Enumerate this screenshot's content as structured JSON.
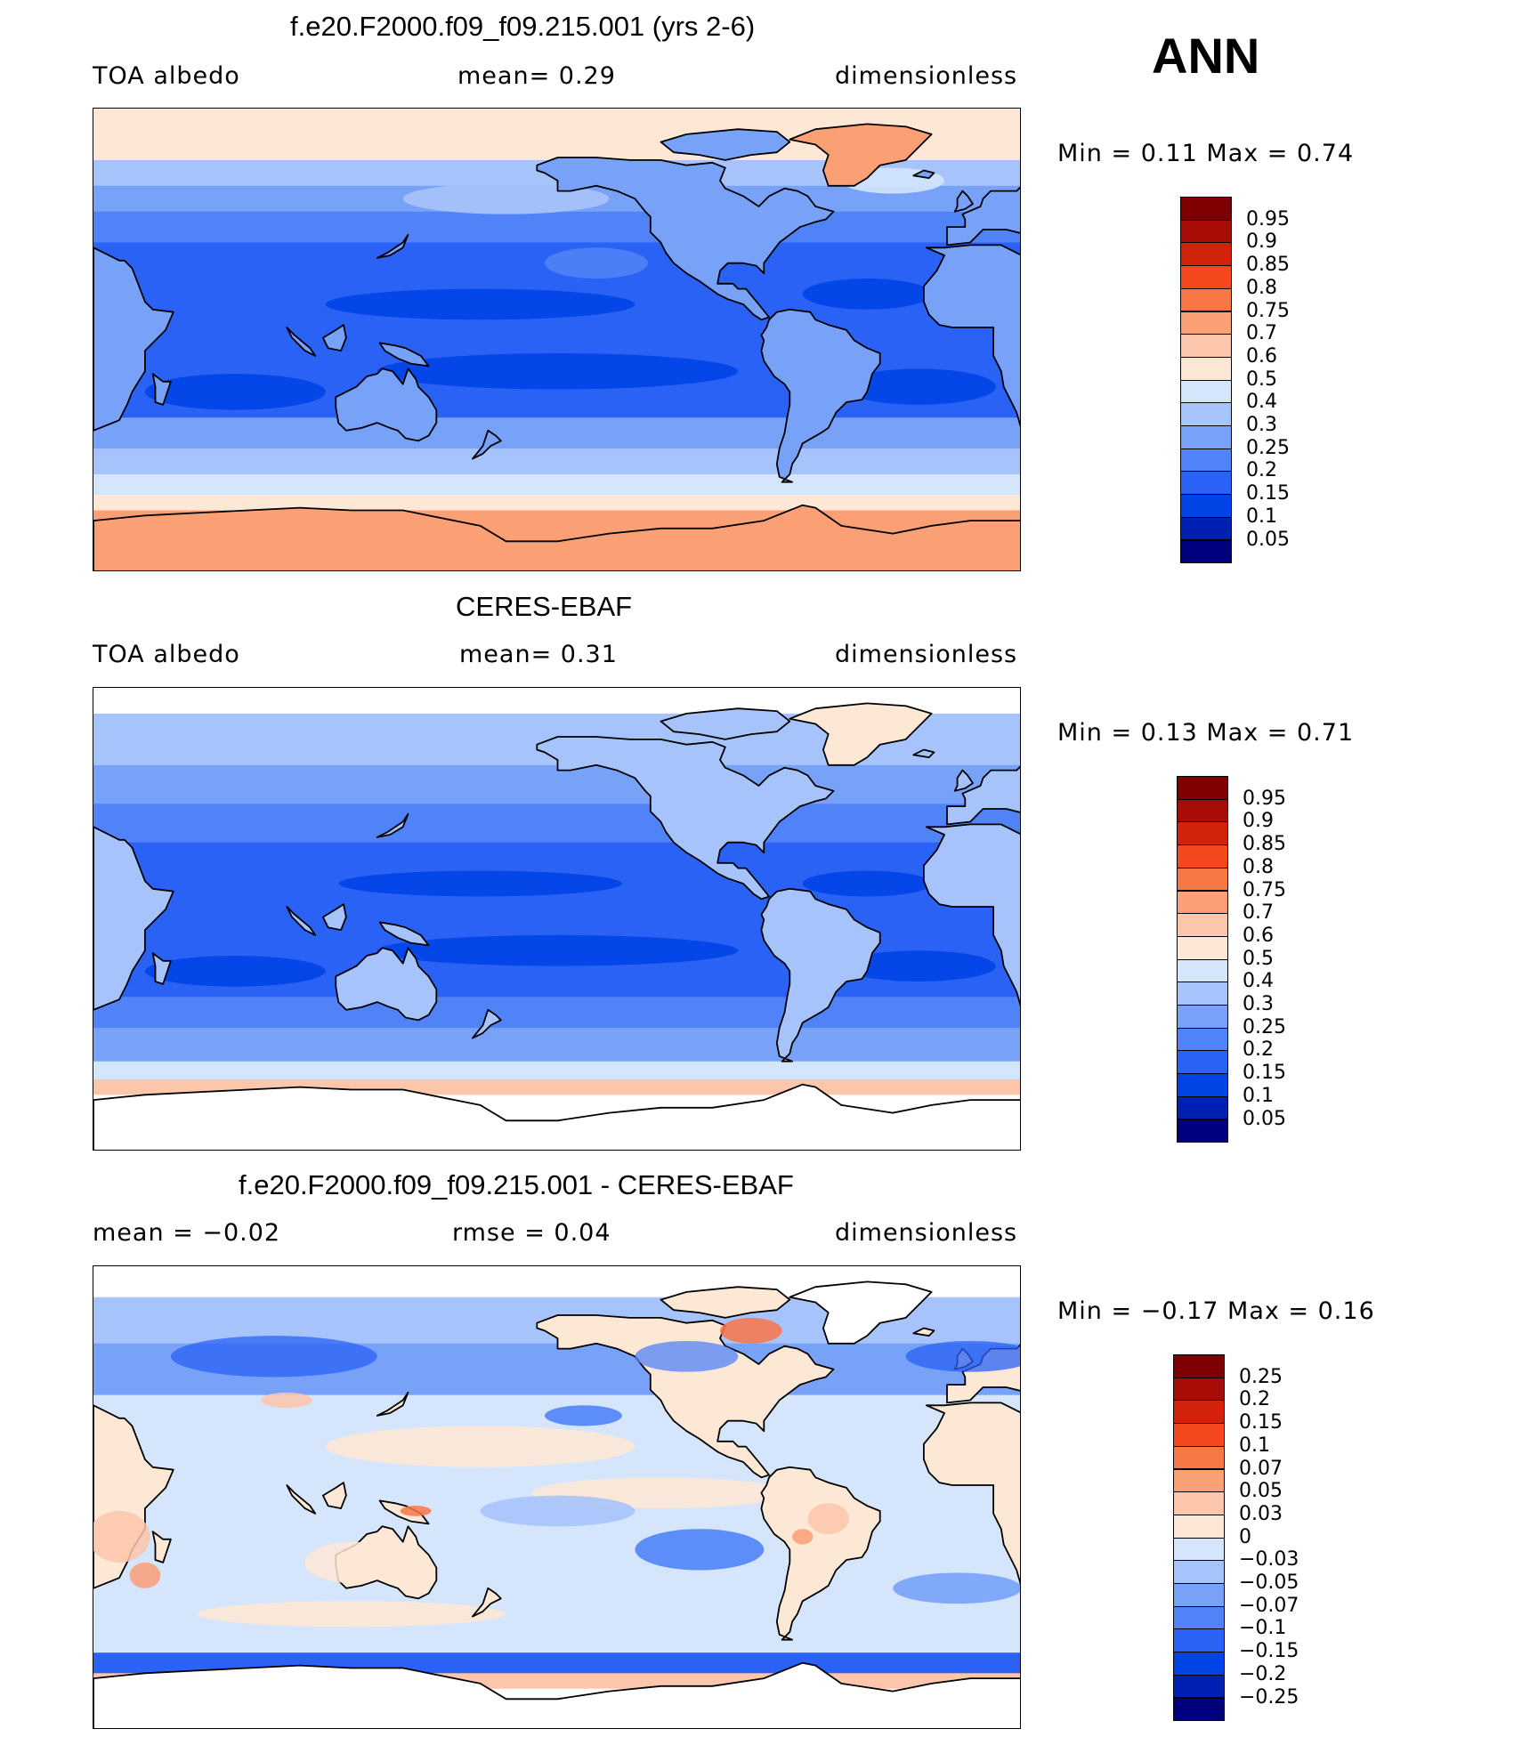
{
  "season": "ANN",
  "colors": {
    "abs_scale": [
      "#00007f",
      "#0020b4",
      "#0044e6",
      "#2a62f5",
      "#4f83f7",
      "#77a2f8",
      "#a7c3fb",
      "#d4e5fc",
      "#fde8d6",
      "#fcc6aa",
      "#fb9f75",
      "#f97645",
      "#f4471d",
      "#d3220a",
      "#a80c06",
      "#7f0000"
    ],
    "diff_scale": [
      "#00007f",
      "#0020b4",
      "#0044e6",
      "#2a62f5",
      "#4f83f7",
      "#77a2f8",
      "#a7c3fb",
      "#d4e5fc",
      "#fde8d6",
      "#fcc6aa",
      "#fb9f75",
      "#f97645",
      "#f4471d",
      "#d3220a",
      "#a80c06",
      "#7f0000"
    ],
    "land_outline": "#000000"
  },
  "panels": [
    {
      "title": "f.e20.F2000.f09_f09.215.001 (yrs 2-6)",
      "left_label": "TOA  albedo",
      "mid_label": "mean=     0.29",
      "right_label": "dimensionless",
      "minmax": "Min  =      0.11  Max  =      0.74",
      "ticks": [
        "0.95",
        "0.9",
        "0.85",
        "0.8",
        "0.75",
        "0.7",
        "0.6",
        "0.5",
        "0.4",
        "0.3",
        "0.25",
        "0.2",
        "0.15",
        "0.1",
        "0.05"
      ],
      "field": "model"
    },
    {
      "title": "CERES-EBAF",
      "left_label": "TOA  albedo",
      "mid_label": "mean=     0.31",
      "right_label": "dimensionless",
      "minmax": "Min  =      0.13  Max  =      0.71",
      "ticks": [
        "0.95",
        "0.9",
        "0.85",
        "0.8",
        "0.75",
        "0.7",
        "0.6",
        "0.5",
        "0.4",
        "0.3",
        "0.25",
        "0.2",
        "0.15",
        "0.1",
        "0.05"
      ],
      "field": "obs"
    },
    {
      "title": "f.e20.F2000.f09_f09.215.001 - CERES-EBAF",
      "left_label": "mean  =   −0.02",
      "mid_label": "rmse  =     0.04",
      "right_label": "dimensionless",
      "minmax": "Min  =   −0.17  Max  =      0.16",
      "ticks": [
        "0.25",
        "0.2",
        "0.15",
        "0.1",
        "0.07",
        "0.05",
        "0.03",
        "0",
        "−0.03",
        "−0.05",
        "−0.07",
        "−0.1",
        "−0.15",
        "−0.2",
        "−0.25"
      ],
      "field": "diff"
    }
  ]
}
